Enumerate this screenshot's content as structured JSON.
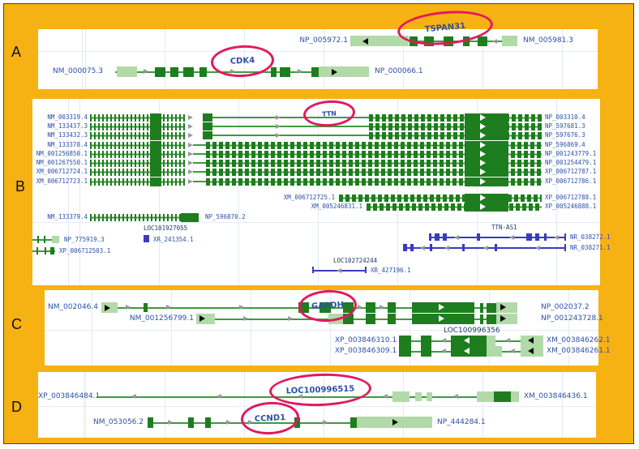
{
  "figure": {
    "panel_letters": [
      "A",
      "B",
      "C",
      "D"
    ]
  },
  "colors": {
    "background": "#F6B113",
    "panel_bg": "#FFFFFF",
    "exon_dark": "#1E7D1E",
    "utr_light": "#B2D9A8",
    "intron_green": "#3D9B3D",
    "accession_blue": "#2B50A8",
    "feature_dark": "#1D3A66",
    "rna_blue": "#3A3AC4",
    "circle_red": "#E1195E"
  },
  "panel_a": {
    "gene_circles": [
      "TSPAN31",
      "CDK4"
    ],
    "rows": [
      {
        "left": "NP_005972.1",
        "right": "NM_005981.3"
      },
      {
        "left": "NM_000075.3",
        "right": "NP_000066.1"
      }
    ]
  },
  "panel_b": {
    "gene_circle": "TTN",
    "transcripts": [
      {
        "left": "NM_003319.4",
        "right": "NP_003310.4"
      },
      {
        "left": "NM_133437.3",
        "right": "NP_597681.3"
      },
      {
        "left": "NM_133432.3",
        "right": "NP_597676.3"
      },
      {
        "left": "NM_133378.4",
        "right": "NP_596869.4"
      },
      {
        "left": "NM_001256850.1",
        "right": "NP_001243779.1"
      },
      {
        "left": "NM_001267550.1",
        "right": "NP_001254479.1"
      },
      {
        "left": "XM_006712724.1",
        "right": "XP_006712787.1"
      },
      {
        "left": "XM_006712723.1",
        "right": "XP_006712786.1"
      },
      {
        "mid": "XM_006712725.1",
        "right": "XP_006712788.1"
      },
      {
        "mid": "XM_005246831.1",
        "right": "XP_005246888.1"
      },
      {
        "left": "NM_133379.4",
        "mid": "NP_596870.2"
      }
    ],
    "features": {
      "np": "NP_775919.3",
      "xp": "XP_006712503.1",
      "loc1": "LOC101927055",
      "xr1": "XR_241354.1",
      "antisense": "TTN-AS1",
      "nr1": "NR_038272.1",
      "nr2": "NR_038271.1",
      "loc2": "LOC102724244",
      "xr2": "XR_427196.1"
    }
  },
  "panel_c": {
    "gene_circle": "GAPDH",
    "rows": [
      {
        "left": "NM_002046.4",
        "right": "NP_002037.2"
      },
      {
        "left": "NM_001256799.1",
        "right": "NP_001243728.1"
      }
    ],
    "locus": "LOC100996356",
    "locus_rows": [
      {
        "left": "XP_003846310.1",
        "right": "XM_003846262.1"
      },
      {
        "left": "XP_003846309.1",
        "right": "XM_003846261.1"
      }
    ]
  },
  "panel_d": {
    "gene_circles": [
      "LOC100996515",
      "CCND1"
    ],
    "rows": [
      {
        "left": "XP_003846484.1",
        "right": "XM_003846436.1"
      },
      {
        "left": "NM_053056.2",
        "right": "NP_444284.1"
      }
    ]
  }
}
